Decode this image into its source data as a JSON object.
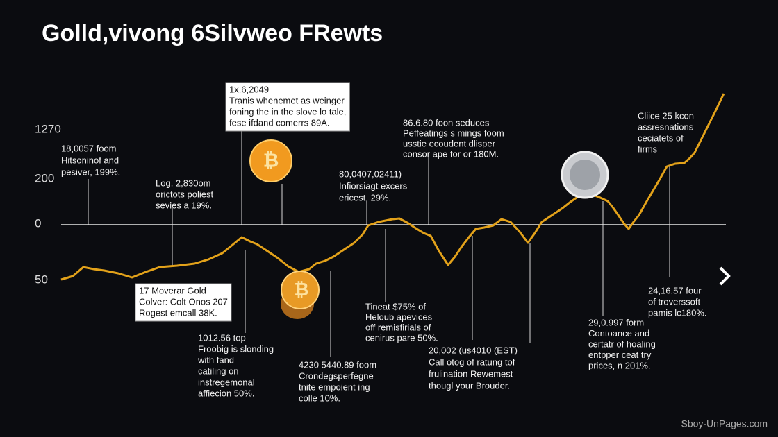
{
  "title": "Golld,vivong 6Silvweo FRewts",
  "axis_labels": [
    "1270",
    "200",
    "0",
    "50"
  ],
  "annotations": [
    {
      "lines": [
        "18,0057 foom",
        "Hitsoninof and",
        "pesiver, 199%."
      ]
    },
    {
      "lines": [
        "Log. 2,830om",
        "orictots poliest",
        "sevies a 19%."
      ]
    },
    {
      "lines": [
        "1x.6,2049",
        "Tranis whenemet as weinger",
        "foning the in the slove lo tale,",
        "fese ifdand comerrs 89A."
      ]
    },
    {
      "lines": [
        "86.6.80 foon seduces",
        "Peffeatings s mings foom",
        "usstie ecoudent dlisper",
        "consor ape for or 180M."
      ]
    },
    {
      "lines": [
        "80,0407,02411)",
        "Infiorsiagt excers",
        "ericest, 29%."
      ]
    },
    {
      "lines": [
        "Cliice 25 kcon",
        "assresnations",
        "ceciatets of",
        "firms"
      ]
    },
    {
      "lines": [
        "17 Moverar Gold",
        "Colver: Colt Onos 207",
        "Rogest emcall 38K."
      ]
    },
    {
      "lines": [
        "1012.56 top",
        "Froobig is slonding",
        "with fand",
        "catiling on",
        "instregemonal",
        "affiecion 50%."
      ]
    },
    {
      "lines": [
        "Tineat $75% of",
        "Heloub apevices",
        "off remisfirials of",
        "cenirus pare 50%."
      ]
    },
    {
      "lines": [
        "4230 5440.89 foom",
        "Crondegsperfegne",
        "tnite empoient ing",
        "colle 10%."
      ]
    },
    {
      "lines": [
        "20,002 (us4010 (EST)",
        "Call otog of ratung tof",
        "frulination Rewemest",
        "thougl your Brouder."
      ]
    },
    {
      "lines": [
        "29,0.997 form",
        "Contoance and",
        "certatr of hoaling",
        "entpper ceat try",
        "prices, n 201%."
      ]
    },
    {
      "lines": [
        "24,16.57 four",
        "of troverssoft",
        "pamis lc180%."
      ]
    }
  ],
  "watermark": "Sboy-UnPages.com"
}
